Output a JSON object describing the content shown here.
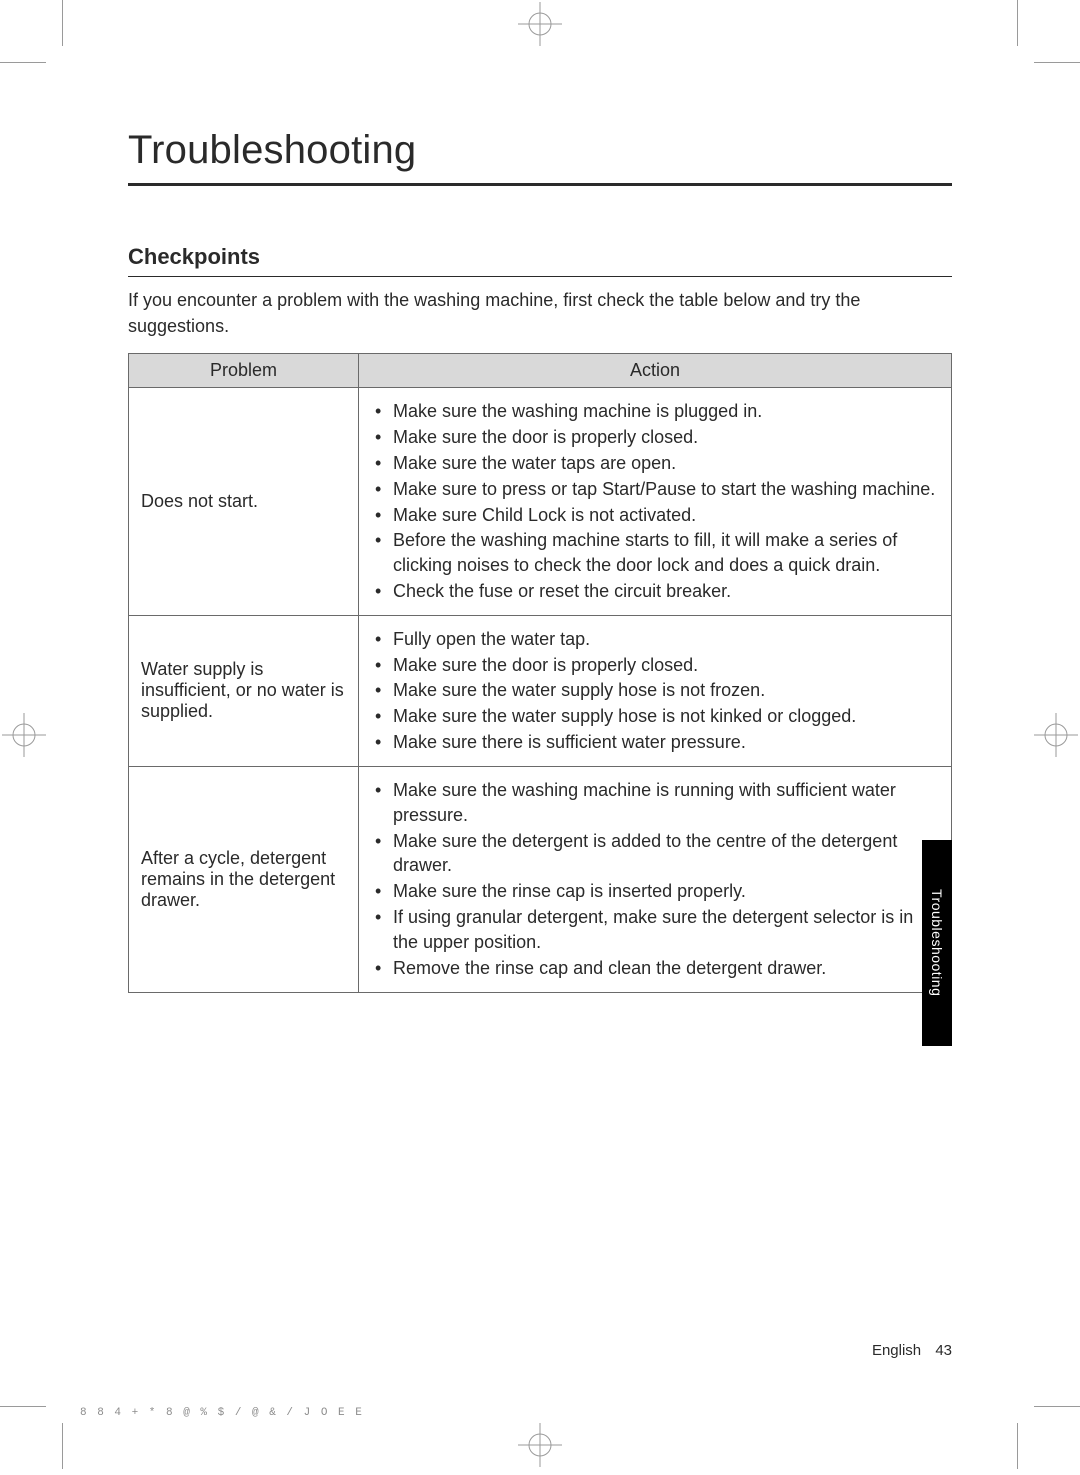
{
  "page": {
    "title": "Troubleshooting",
    "section_heading": "Checkpoints",
    "intro": "If you encounter a problem with the washing machine, first check the table below and try the suggestions.",
    "side_tab": "Troubleshooting",
    "footer_lang": "English",
    "footer_page": "43",
    "footer_code": "8 8  4 +      * 8 @ % $          /     @ & /   J O E E"
  },
  "table": {
    "columns": [
      "Problem",
      "Action"
    ],
    "header_bg": "#d9d9d9",
    "border_color": "#6a6a6a",
    "rows": [
      {
        "problem": "Does not start.",
        "actions": [
          "Make sure the washing machine is plugged in.",
          "Make sure the door is properly closed.",
          "Make sure the water taps are open.",
          "Make sure to press or tap Start/Pause to start the washing machine.",
          "Make sure Child Lock is not activated.",
          "Before the washing machine starts to fill, it will make a series of clicking noises to check the door lock and does a quick drain.",
          "Check the fuse or reset the circuit breaker."
        ]
      },
      {
        "problem": "Water supply is insufficient, or no water is supplied.",
        "actions": [
          "Fully open the water tap.",
          "Make sure the door is properly closed.",
          "Make sure the water supply hose is not frozen.",
          "Make sure the water supply hose is not kinked or clogged.",
          "Make sure there is sufficient water pressure."
        ]
      },
      {
        "problem": "After a cycle, detergent remains in the detergent drawer.",
        "actions": [
          "Make sure the washing machine is running with sufficient water pressure.",
          "Make sure the detergent is added to the centre of the detergent drawer.",
          "Make sure the rinse cap is inserted properly.",
          "If using granular detergent, make sure the detergent selector is in the upper position.",
          "Remove the rinse cap and clean the detergent drawer."
        ]
      }
    ]
  }
}
